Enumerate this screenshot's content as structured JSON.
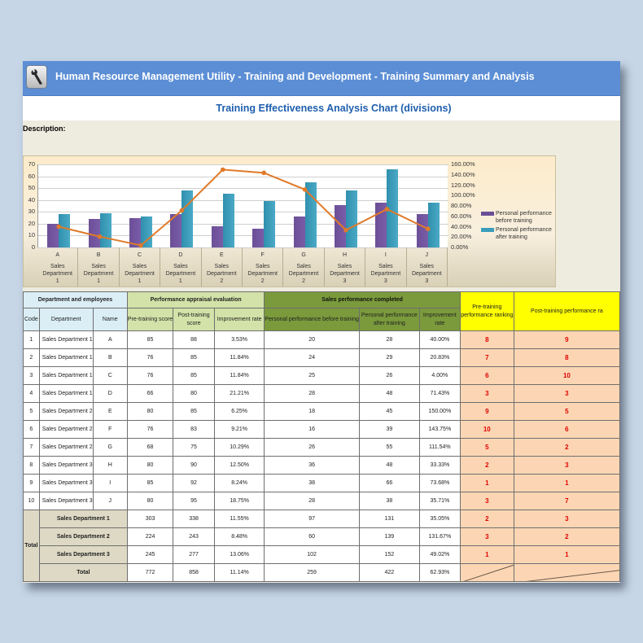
{
  "window": {
    "title": "Human Resource Management Utility - Training and Development - Training Summary and Analysis",
    "icon": "wrench-icon"
  },
  "page": {
    "chart_title": "Training Effectiveness Analysis Chart (divisions)",
    "description_label": "Description:"
  },
  "colors": {
    "titlebar": "#5b8ed5",
    "bar_before": "#6b4f96",
    "bar_after": "#3a9dbb",
    "line_rate": "#e07a2a",
    "rank_fill": "#fcd6b4",
    "rank_text": "#e00000",
    "header_yellow": "#ffff00",
    "header_green_dark": "#7a9a3c",
    "header_green_light": "#d3e2a8",
    "header_blue": "#dbeef6"
  },
  "chart_data": {
    "type": "bar",
    "title": "",
    "categories": [
      "A",
      "B",
      "C",
      "D",
      "E",
      "F",
      "G",
      "H",
      "I",
      "J"
    ],
    "category_groups": [
      "Sales Department 1",
      "Sales Department 1",
      "Sales Department 1",
      "Sales Department 1",
      "Sales Department 2",
      "Sales Department 2",
      "Sales Department 2",
      "Sales Department 3",
      "Sales Department 3",
      "Sales Department 3"
    ],
    "series": [
      {
        "name": "Personal performance before training",
        "type": "bar",
        "axis": "left",
        "values": [
          20,
          24,
          25,
          28,
          18,
          16,
          26,
          36,
          38,
          28
        ]
      },
      {
        "name": "Personal performance after training",
        "type": "bar",
        "axis": "left",
        "values": [
          28,
          29,
          26,
          48,
          45,
          39,
          55,
          48,
          66,
          38
        ]
      },
      {
        "name": "Improvement rate",
        "type": "line",
        "axis": "right",
        "values": [
          40.0,
          20.83,
          4.0,
          71.43,
          150.0,
          143.75,
          111.54,
          33.33,
          73.68,
          35.71
        ]
      }
    ],
    "y_left": {
      "min": 0,
      "max": 70,
      "ticks": [
        "0",
        "10",
        "20",
        "30",
        "40",
        "50",
        "60",
        "70"
      ]
    },
    "y_right": {
      "min": 0,
      "max": 160,
      "ticks": [
        "0.00%",
        "20.00%",
        "40.00%",
        "60.00%",
        "80.00%",
        "100.00%",
        "120.00%",
        "140.00%",
        "160.00%"
      ]
    },
    "legend_position": "right",
    "legend": [
      "Personal performance before training",
      "Personal performance after training"
    ],
    "grid": true,
    "xlabel": "",
    "ylabel": ""
  },
  "table": {
    "group_headers": {
      "dept": "Department and employees",
      "perf": "Performance appraisal evaluation",
      "sales": "Sales performance completed",
      "pre_rank": "Pre-training performance ranking",
      "post_rank": "Post-training performance ra"
    },
    "columns": {
      "code": "Code",
      "department": "Department",
      "name": "Name",
      "pre_score": "Pre-training score",
      "post_score": "Post-training score",
      "perf_rate": "Improvement rate",
      "sales_before": "Personal performance before training",
      "sales_after": "Personal performance after training",
      "sales_rate": "Improvement rate"
    },
    "rows": [
      {
        "code": "1",
        "department": "Sales Department 1",
        "name": "A",
        "pre": "85",
        "post": "88",
        "rate": "3.53%",
        "before": "20",
        "after": "28",
        "srate": "40.00%",
        "pre_rank": "8",
        "post_rank": "9"
      },
      {
        "code": "2",
        "department": "Sales Department 1",
        "name": "B",
        "pre": "76",
        "post": "85",
        "rate": "11.84%",
        "before": "24",
        "after": "29",
        "srate": "20.83%",
        "pre_rank": "7",
        "post_rank": "8"
      },
      {
        "code": "3",
        "department": "Sales Department 1",
        "name": "C",
        "pre": "76",
        "post": "85",
        "rate": "11.84%",
        "before": "25",
        "after": "26",
        "srate": "4.00%",
        "pre_rank": "6",
        "post_rank": "10"
      },
      {
        "code": "4",
        "department": "Sales Department 1",
        "name": "D",
        "pre": "66",
        "post": "80",
        "rate": "21.21%",
        "before": "28",
        "after": "48",
        "srate": "71.43%",
        "pre_rank": "3",
        "post_rank": "3"
      },
      {
        "code": "5",
        "department": "Sales Department 2",
        "name": "E",
        "pre": "80",
        "post": "85",
        "rate": "6.25%",
        "before": "18",
        "after": "45",
        "srate": "150.00%",
        "pre_rank": "9",
        "post_rank": "5"
      },
      {
        "code": "6",
        "department": "Sales Department 2",
        "name": "F",
        "pre": "76",
        "post": "83",
        "rate": "9.21%",
        "before": "16",
        "after": "39",
        "srate": "143.75%",
        "pre_rank": "10",
        "post_rank": "6"
      },
      {
        "code": "7",
        "department": "Sales Department 2",
        "name": "G",
        "pre": "68",
        "post": "75",
        "rate": "10.29%",
        "before": "26",
        "after": "55",
        "srate": "111.54%",
        "pre_rank": "5",
        "post_rank": "2"
      },
      {
        "code": "8",
        "department": "Sales Department 3",
        "name": "H",
        "pre": "80",
        "post": "90",
        "rate": "12.50%",
        "before": "36",
        "after": "48",
        "srate": "33.33%",
        "pre_rank": "2",
        "post_rank": "3"
      },
      {
        "code": "9",
        "department": "Sales Department 3",
        "name": "I",
        "pre": "85",
        "post": "92",
        "rate": "8.24%",
        "before": "38",
        "after": "66",
        "srate": "73.68%",
        "pre_rank": "1",
        "post_rank": "1"
      },
      {
        "code": "10",
        "department": "Sales Department 3",
        "name": "J",
        "pre": "80",
        "post": "95",
        "rate": "18.75%",
        "before": "28",
        "after": "38",
        "srate": "35.71%",
        "pre_rank": "3",
        "post_rank": "7"
      }
    ],
    "total_label": "Total",
    "totals": [
      {
        "label": "Sales Department 1",
        "pre": "303",
        "post": "338",
        "rate": "11.55%",
        "before": "97",
        "after": "131",
        "srate": "35.05%",
        "pre_rank": "2",
        "post_rank": "3"
      },
      {
        "label": "Sales Department 2",
        "pre": "224",
        "post": "243",
        "rate": "8.48%",
        "before": "60",
        "after": "139",
        "srate": "131.67%",
        "pre_rank": "3",
        "post_rank": "2"
      },
      {
        "label": "Sales Department 3",
        "pre": "245",
        "post": "277",
        "rate": "13.06%",
        "before": "102",
        "after": "152",
        "srate": "49.02%",
        "pre_rank": "1",
        "post_rank": "1"
      },
      {
        "label": "Total",
        "pre": "772",
        "post": "858",
        "rate": "11.14%",
        "before": "259",
        "after": "422",
        "srate": "62.93%",
        "pre_rank": "",
        "post_rank": ""
      }
    ]
  }
}
